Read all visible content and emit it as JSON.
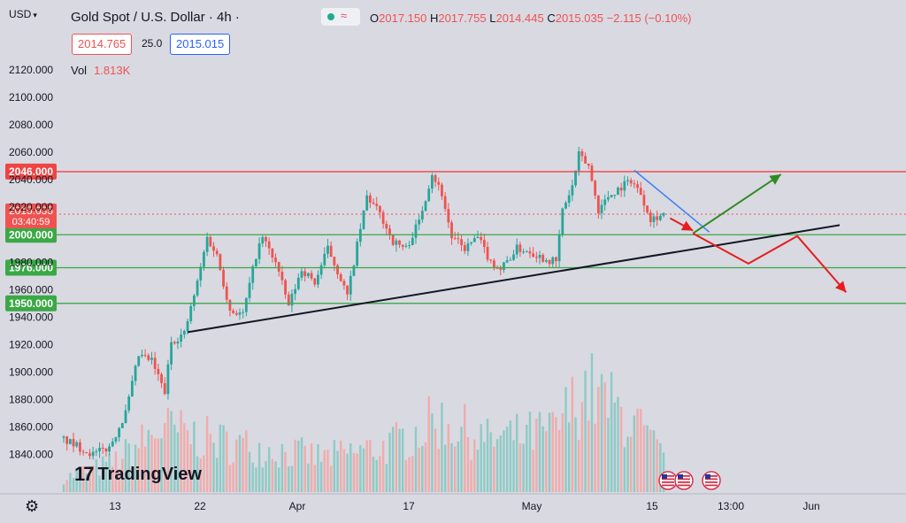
{
  "header": {
    "currency": "USD",
    "title": "Gold Spot / U.S. Dollar · 4h ·",
    "ohlc": {
      "o_label": "O",
      "o": "2017.150",
      "h_label": "H",
      "h": "2017.755",
      "l_label": "L",
      "l": "2014.445",
      "c_label": "C",
      "c": "2015.035",
      "change": "−2.115 (−0.10%)"
    },
    "bid": "2014.765",
    "spread": "25.0",
    "ask": "2015.015",
    "vol_label": "Vol",
    "vol_value": "1.813K",
    "brand": "TradingView",
    "logo_glyph": "17"
  },
  "colors": {
    "background": "#d9d9e2",
    "up": "#26a69a",
    "down": "#ef5350",
    "resistance": "#ef4444",
    "support": "#3aa845",
    "trendline": "#131722",
    "descending": "#3b82f6",
    "arrow_up": "#2e8b24",
    "arrow_down": "#e51d1d"
  },
  "chart_data": {
    "type": "candlestick",
    "title": "Gold Spot / U.S. Dollar · 4h",
    "ylim": [
      1828,
      2133
    ],
    "y_ticks": [
      "2120.000",
      "2100.000",
      "2080.000",
      "2060.000",
      "2040.000",
      "2020.000",
      "1980.000",
      "1960.000",
      "1940.000",
      "1920.000",
      "1900.000",
      "1880.000",
      "1860.000",
      "1840.000"
    ],
    "x_ticks": [
      "13",
      "22",
      "Apr",
      "17",
      "May",
      "15",
      "13:00",
      "Jun"
    ],
    "candle_count": 185,
    "current_price": {
      "label": "2015.035",
      "countdown": "03:40:59",
      "value": 2015.035
    },
    "levels": [
      {
        "label": "2046.000",
        "value": 2046,
        "kind": "resistance"
      },
      {
        "label": "2000.000",
        "value": 2000,
        "kind": "support"
      },
      {
        "label": "1976.000",
        "value": 1976,
        "kind": "support"
      },
      {
        "label": "1950.000",
        "value": 1950,
        "kind": "support"
      }
    ],
    "anchors": [
      [
        0,
        1852
      ],
      [
        10,
        1840
      ],
      [
        15,
        1845
      ],
      [
        20,
        1870
      ],
      [
        24,
        1912
      ],
      [
        28,
        1908
      ],
      [
        32,
        1885
      ],
      [
        34,
        1922
      ],
      [
        38,
        1928
      ],
      [
        42,
        1965
      ],
      [
        45,
        1998
      ],
      [
        48,
        1985
      ],
      [
        52,
        1945
      ],
      [
        56,
        1942
      ],
      [
        60,
        1985
      ],
      [
        62,
        1998
      ],
      [
        66,
        1980
      ],
      [
        70,
        1948
      ],
      [
        74,
        1975
      ],
      [
        78,
        1965
      ],
      [
        82,
        1990
      ],
      [
        86,
        1968
      ],
      [
        88,
        1955
      ],
      [
        90,
        1980
      ],
      [
        94,
        2028
      ],
      [
        98,
        2015
      ],
      [
        102,
        1995
      ],
      [
        106,
        1990
      ],
      [
        110,
        2010
      ],
      [
        114,
        2045
      ],
      [
        117,
        2030
      ],
      [
        120,
        1998
      ],
      [
        124,
        1990
      ],
      [
        128,
        1998
      ],
      [
        132,
        1980
      ],
      [
        135,
        1975
      ],
      [
        140,
        1990
      ],
      [
        144,
        1988
      ],
      [
        148,
        1983
      ],
      [
        152,
        1980
      ],
      [
        154,
        2018
      ],
      [
        157,
        2035
      ],
      [
        159,
        2058
      ],
      [
        162,
        2050
      ],
      [
        165,
        2018
      ],
      [
        168,
        2028
      ],
      [
        172,
        2035
      ],
      [
        175,
        2040
      ],
      [
        178,
        2030
      ],
      [
        181,
        2012
      ],
      [
        185,
        2015
      ]
    ],
    "volume_anchors": [
      [
        0,
        0.12
      ],
      [
        15,
        0.25
      ],
      [
        30,
        0.55
      ],
      [
        45,
        0.45
      ],
      [
        60,
        0.38
      ],
      [
        80,
        0.3
      ],
      [
        100,
        0.4
      ],
      [
        115,
        0.62
      ],
      [
        130,
        0.45
      ],
      [
        150,
        0.52
      ],
      [
        160,
        0.9
      ],
      [
        175,
        0.6
      ],
      [
        185,
        0.25
      ]
    ],
    "trendline": {
      "from": {
        "index": 38,
        "price": 1929
      },
      "to": {
        "index": 238,
        "price": 2007
      }
    },
    "descending_line": {
      "from": {
        "index": 175,
        "price": 2047
      },
      "to": {
        "index": 198,
        "price": 2002
      }
    },
    "projection_up": [
      [
        193,
        2001
      ],
      [
        220,
        2044
      ]
    ],
    "projection_down": [
      [
        193,
        2001
      ],
      [
        210,
        1979
      ],
      [
        225,
        1999
      ],
      [
        240,
        1958
      ]
    ],
    "pullback_arrow": [
      [
        186,
        2012
      ],
      [
        193,
        2003
      ]
    ],
    "event_icon_count": 3
  }
}
